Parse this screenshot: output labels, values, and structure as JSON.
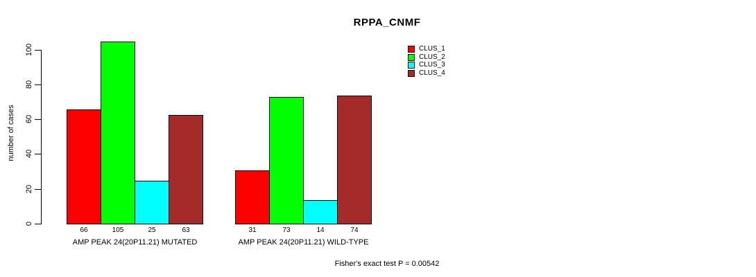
{
  "page": {
    "background_color": "#FFFFFF",
    "text_color": "#000000"
  },
  "chart_data": {
    "type": "bar",
    "title": "RPPA_CNMF",
    "ylabel": "number of cases",
    "xlabel": "",
    "ylim": [
      0,
      105
    ],
    "yticks": [
      0,
      20,
      40,
      60,
      80,
      100
    ],
    "grid": false,
    "show_bar_value_labels": true,
    "legend_position": "top-right",
    "categories": [
      "AMP PEAK 24(20P11.21) MUTATED",
      "AMP PEAK 24(20P11.21) WILD-TYPE"
    ],
    "series": [
      {
        "name": "CLUS_1",
        "color": "#FF0000",
        "values": [
          66,
          31
        ]
      },
      {
        "name": "CLUS_2",
        "color": "#00FF00",
        "values": [
          105,
          73
        ]
      },
      {
        "name": "CLUS_3",
        "color": "#00FFFF",
        "values": [
          25,
          14
        ]
      },
      {
        "name": "CLUS_4",
        "color": "#A52A2A",
        "values": [
          63,
          74
        ]
      }
    ],
    "annotation": "Fisher's exact test P = 0.00542"
  }
}
